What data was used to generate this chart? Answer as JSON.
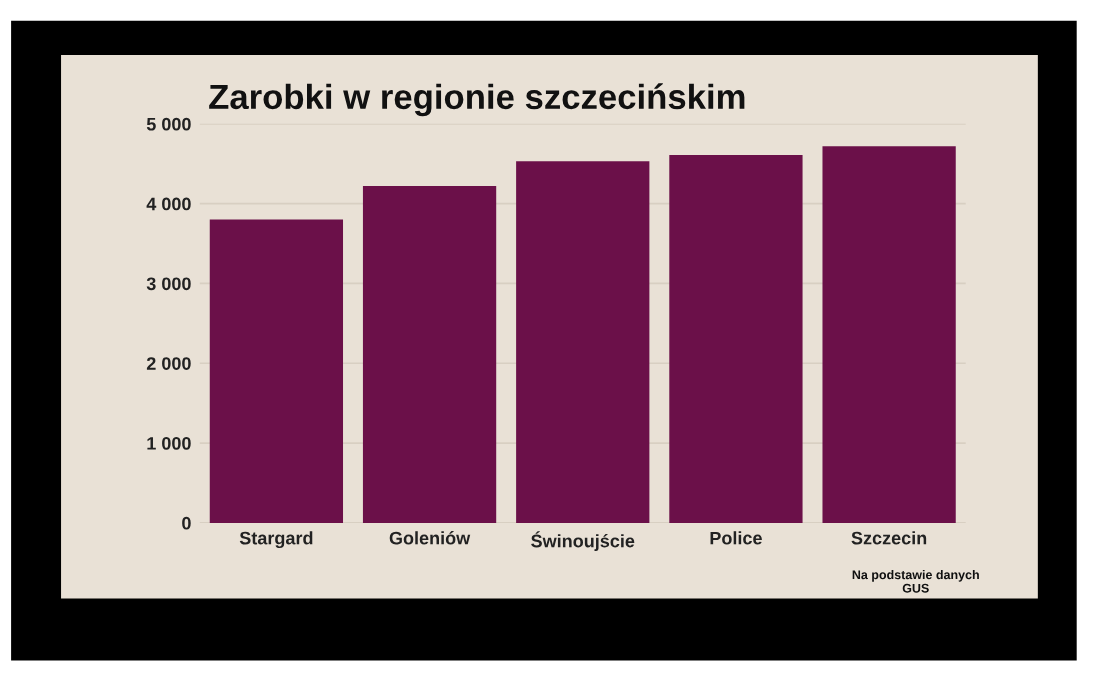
{
  "chart_data": {
    "type": "bar",
    "title": "Zarobki w regionie szczecińskim",
    "categories": [
      "Stargard",
      "Goleniów",
      "Świnoujście",
      "Police",
      "Szczecin"
    ],
    "values": [
      3800,
      4220,
      4530,
      4610,
      4720
    ],
    "color": "#6b1049",
    "ylim": [
      0,
      5000
    ],
    "yticks": [
      0,
      {
        "value": 1000,
        "label": "1 000"
      },
      {
        "value": 2000,
        "label": "2 000"
      },
      {
        "value": 3000,
        "label": "3 000"
      },
      {
        "value": 4000,
        "label": "4 000"
      },
      {
        "value": 5000,
        "label": "5 000"
      }
    ],
    "grid": "y",
    "annotations": [
      "Na podstawie danych\nGUS"
    ]
  }
}
